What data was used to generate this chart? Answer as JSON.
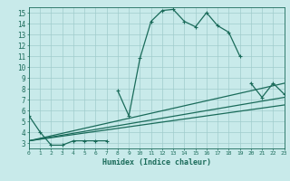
{
  "xlabel": "Humidex (Indice chaleur)",
  "bg_color": "#c8eaea",
  "grid_color": "#a0cccc",
  "line_color": "#1a6b5a",
  "series": [
    {
      "x": [
        0,
        1,
        2,
        3,
        4,
        5,
        6,
        7
      ],
      "y": [
        5.5,
        4.0,
        2.8,
        2.8,
        3.2,
        3.2,
        3.2,
        3.2
      ]
    },
    {
      "x": [
        8,
        9,
        10,
        11,
        12,
        13,
        14,
        15,
        16,
        17,
        18,
        19
      ],
      "y": [
        7.8,
        5.5,
        10.8,
        14.2,
        15.2,
        15.3,
        14.2,
        13.7,
        15.0,
        13.8,
        13.2,
        11.0
      ]
    },
    {
      "x": [
        20,
        21,
        22,
        23
      ],
      "y": [
        8.5,
        7.2,
        8.5,
        7.5
      ]
    },
    {
      "x": [
        0,
        23
      ],
      "y": [
        3.2,
        8.5
      ]
    },
    {
      "x": [
        0,
        23
      ],
      "y": [
        3.2,
        7.2
      ]
    },
    {
      "x": [
        0,
        23
      ],
      "y": [
        3.2,
        6.5
      ]
    }
  ],
  "xlim": [
    0,
    23
  ],
  "ylim": [
    2.5,
    15.5
  ],
  "yticks": [
    3,
    4,
    5,
    6,
    7,
    8,
    9,
    10,
    11,
    12,
    13,
    14,
    15
  ],
  "xticks": [
    0,
    1,
    2,
    3,
    4,
    5,
    6,
    7,
    8,
    9,
    10,
    11,
    12,
    13,
    14,
    15,
    16,
    17,
    18,
    19,
    20,
    21,
    22,
    23
  ]
}
